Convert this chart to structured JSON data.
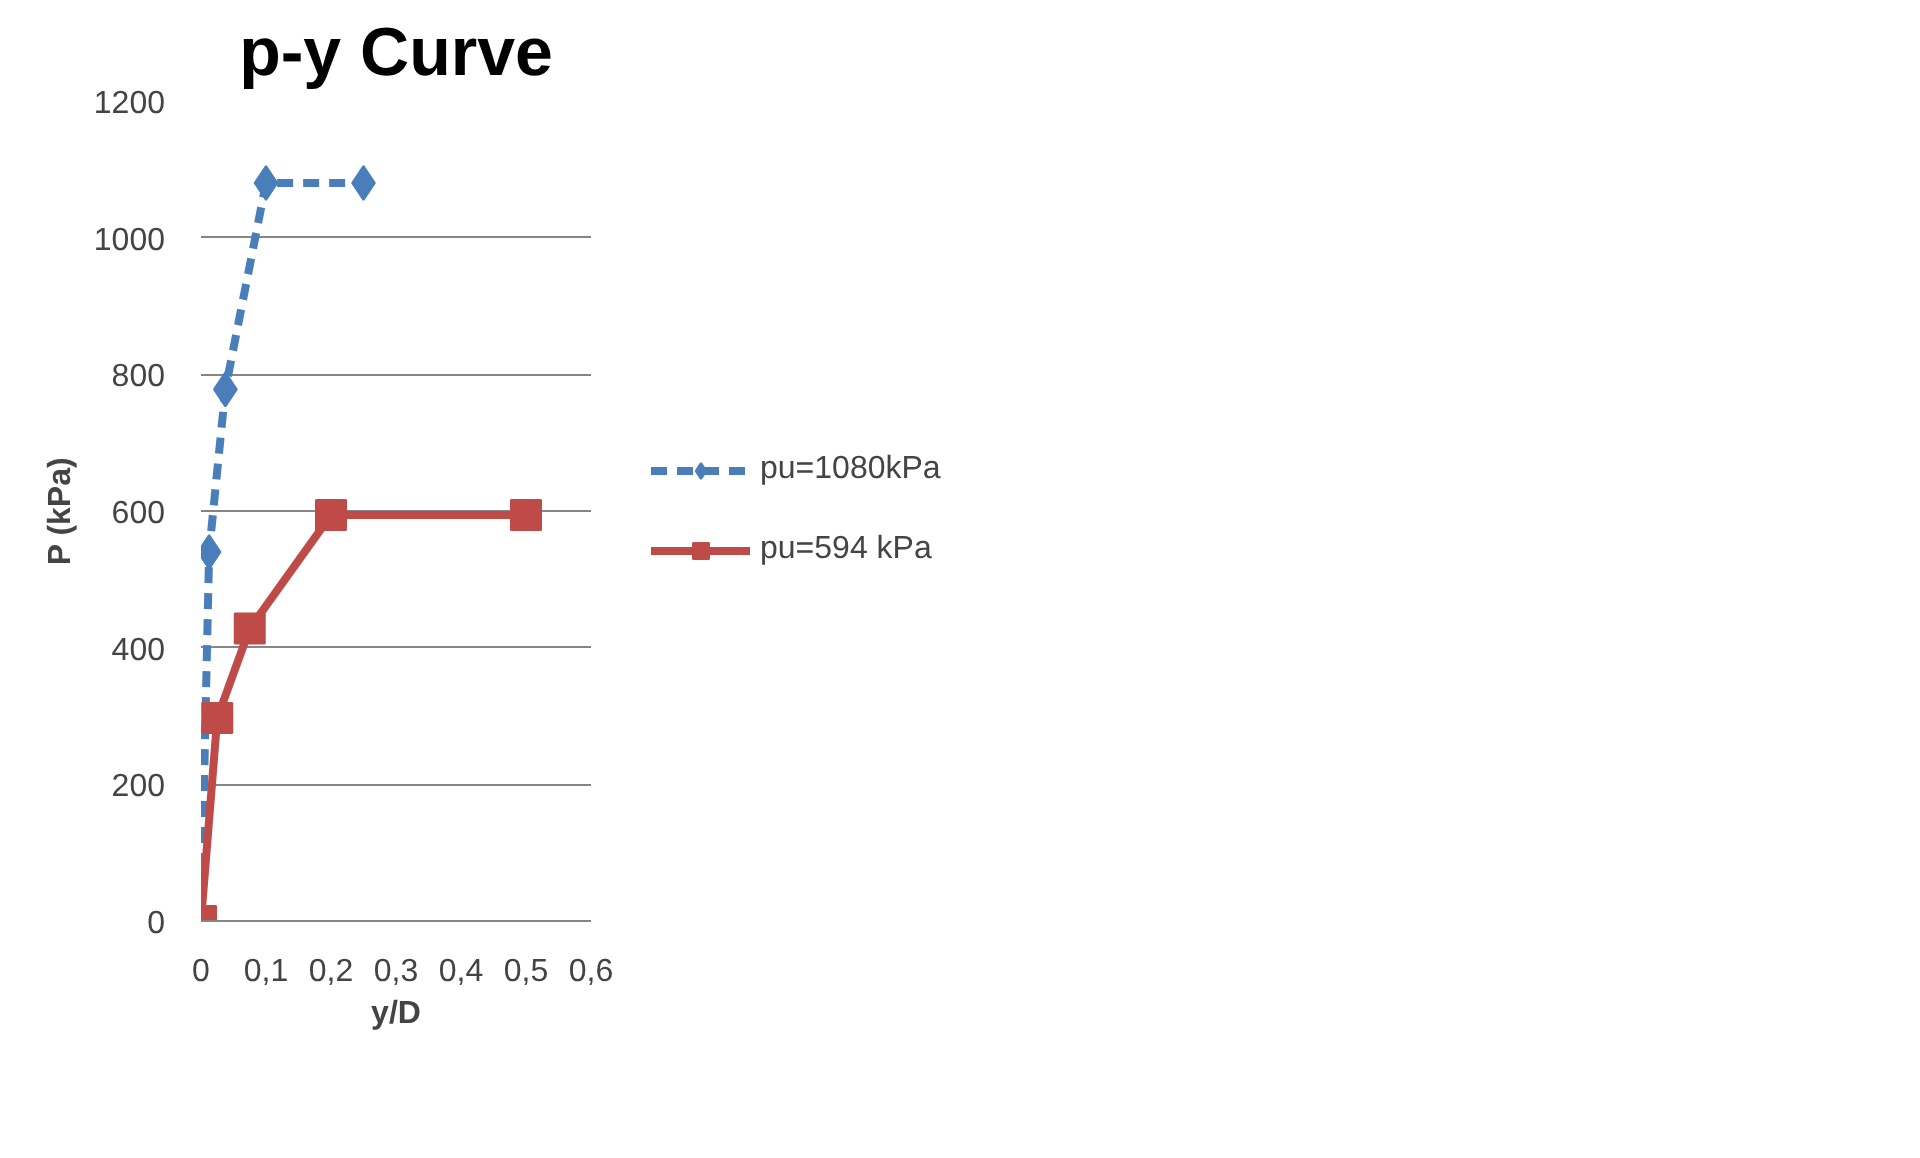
{
  "chart_data": {
    "type": "line",
    "title": "p-y Curve",
    "xlabel": "y/D",
    "ylabel": "P (kPa)",
    "xlim": [
      0,
      0.6
    ],
    "xticks": [
      0,
      {
        "value": 0.1,
        "label": "0,1"
      },
      {
        "value": 0.2,
        "label": "0,2"
      },
      {
        "value": 0.3,
        "label": "0,3"
      },
      {
        "value": 0.4,
        "label": "0,4"
      },
      {
        "value": 0.5,
        "label": "0,5"
      },
      {
        "value": 0.6,
        "label": "0,6"
      }
    ],
    "ylim": [
      0,
      1200
    ],
    "yticks": [
      0,
      200,
      400,
      600,
      800,
      1000,
      1200
    ],
    "grid": "y",
    "legend": "right",
    "series": [
      {
        "name": "pu=1080kPa",
        "color": "#4a7ebb",
        "marker": "diamond",
        "line_style": "dashed",
        "x": [
          0,
          0.0125,
          0.0375,
          0.1,
          0.25
        ],
        "values": [
          0,
          540,
          778,
          1080,
          1080
        ]
      },
      {
        "name": "pu=594 kPa",
        "color": "#be4b48",
        "marker": "square",
        "line_style": "solid",
        "x": [
          0,
          0.025,
          0.075,
          0.2,
          0.5
        ],
        "values": [
          0,
          297,
          428,
          594,
          594
        ]
      }
    ]
  }
}
